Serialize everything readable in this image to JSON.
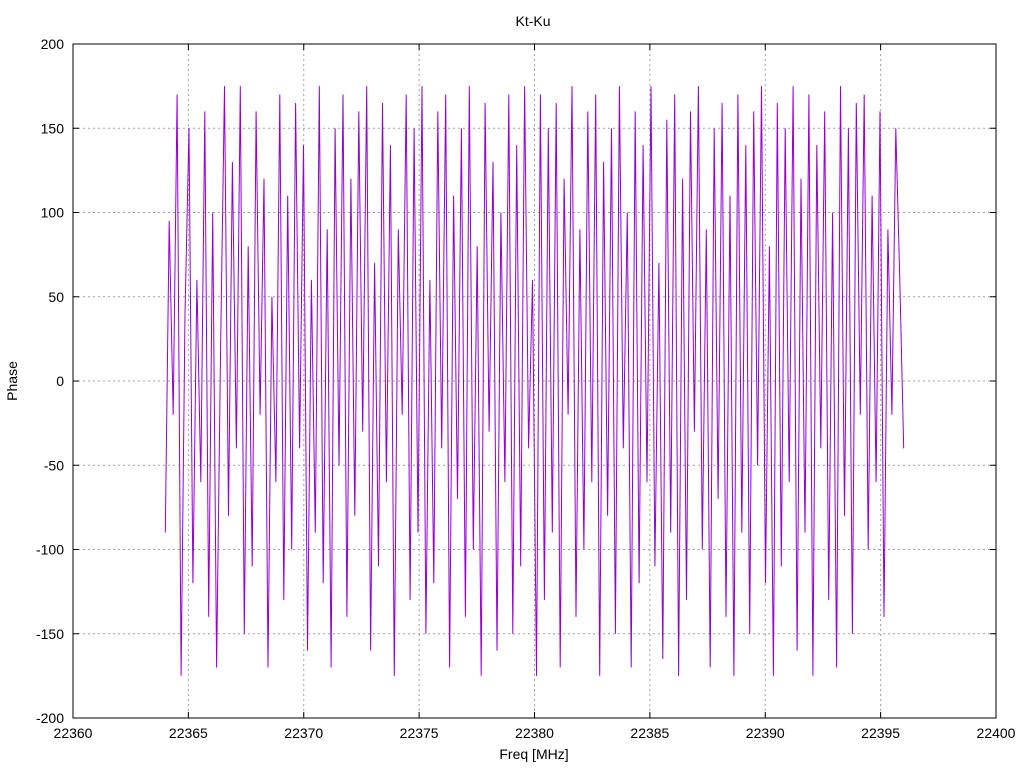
{
  "chart_data": {
    "type": "line",
    "title": "Kt-Ku",
    "xlabel": "Freq [MHz]",
    "ylabel": "Phase",
    "xlim": [
      22360,
      22400
    ],
    "ylim": [
      -200,
      200
    ],
    "x_ticks": [
      "22360",
      "22365",
      "22370",
      "22375",
      "22380",
      "22385",
      "22390",
      "22395",
      "22400"
    ],
    "y_ticks": [
      "-200",
      "-150",
      "-100",
      "-50",
      "0",
      "50",
      "100",
      "150",
      "200"
    ],
    "grid": true,
    "legend": "none",
    "series": [
      {
        "color": "#9400d3",
        "x_start": 22364.0,
        "x_end": 22396.0,
        "values": [
          -90,
          95,
          -20,
          170,
          -175,
          40,
          150,
          -120,
          60,
          -60,
          160,
          -140,
          100,
          -170,
          20,
          175,
          -80,
          130,
          -40,
          175,
          -150,
          80,
          -110,
          160,
          -20,
          120,
          -170,
          50,
          -60,
          170,
          -130,
          110,
          -100,
          165,
          -40,
          140,
          -160,
          60,
          -90,
          175,
          -120,
          90,
          -170,
          150,
          -50,
          170,
          -140,
          120,
          -80,
          160,
          -30,
          175,
          -160,
          70,
          -110,
          165,
          -60,
          140,
          -175,
          90,
          -20,
          170,
          -130,
          150,
          -90,
          175,
          -150,
          60,
          -120,
          160,
          -40,
          170,
          -170,
          110,
          -70,
          150,
          -140,
          175,
          -100,
          80,
          -175,
          165,
          -30,
          130,
          -160,
          100,
          -60,
          170,
          -150,
          140,
          -110,
          175,
          -40,
          60,
          -175,
          170,
          -130,
          150,
          -90,
          165,
          -170,
          120,
          -20,
          175,
          -140,
          90,
          -100,
          160,
          -60,
          170,
          -175,
          130,
          -80,
          150,
          -150,
          175,
          -40,
          100,
          -170,
          160,
          -120,
          140,
          -60,
          175,
          -110,
          70,
          -165,
          155,
          -90,
          170,
          -175,
          120,
          -130,
          160,
          -30,
          175,
          -100,
          90,
          -170,
          150,
          -70,
          165,
          -140,
          110,
          -175,
          170,
          -90,
          140,
          -150,
          160,
          -50,
          175,
          -120,
          80,
          -175,
          165,
          -110,
          150,
          -60,
          175,
          -160,
          120,
          -90,
          170,
          -175,
          140,
          -40,
          160,
          -130,
          100,
          -170,
          175,
          -80,
          150,
          -150,
          165,
          -20,
          170,
          -100,
          110,
          -60,
          160,
          -140,
          90,
          -20,
          150,
          60,
          -40
        ]
      }
    ]
  }
}
